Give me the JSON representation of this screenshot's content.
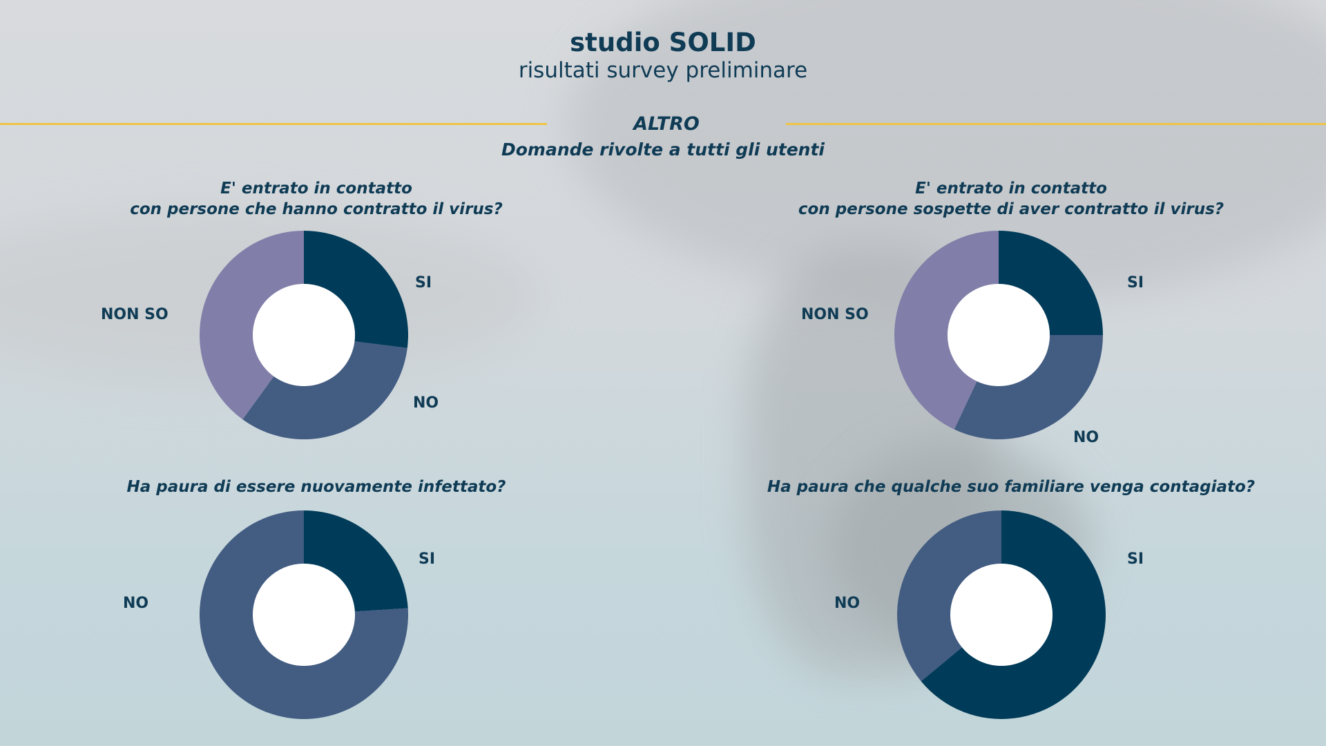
{
  "header": {
    "title": "studio SOLID",
    "subtitle": "risultati survey preliminare"
  },
  "section": {
    "title": "ALTRO",
    "subtitle": "Domande rivolte a tutti gli utenti"
  },
  "colors": {
    "si": "#003b59",
    "no": "#435c82",
    "non_so": "#817fa9",
    "accent": "#efc445",
    "text": "#0f3b55"
  },
  "questions": [
    {
      "line1": "E' entrato in contatto",
      "line2": "con persone che hanno contratto il virus?"
    },
    {
      "line1": "E' entrato in contatto",
      "line2": "con persone sospette di aver contratto il virus?"
    },
    {
      "line1": "Ha paura di essere nuovamente infettato?",
      "line2": ""
    },
    {
      "line1": "Ha paura che qualche suo familiare venga contagiato?",
      "line2": ""
    }
  ],
  "chart_data": [
    {
      "type": "pie",
      "title": "E' entrato in contatto con persone che hanno contratto il virus?",
      "categories": [
        "SI",
        "NO",
        "NON SO"
      ],
      "values": [
        27,
        33,
        40
      ],
      "colors": [
        "#003b59",
        "#435c82",
        "#817fa9"
      ],
      "hole": "donut"
    },
    {
      "type": "pie",
      "title": "E' entrato in contatto con persone sospette di aver contratto il virus?",
      "categories": [
        "SI",
        "NO",
        "NON SO"
      ],
      "values": [
        25,
        32,
        43
      ],
      "colors": [
        "#003b59",
        "#435c82",
        "#817fa9"
      ],
      "hole": "donut"
    },
    {
      "type": "pie",
      "title": "Ha paura di essere nuovamente infettato?",
      "categories": [
        "SI",
        "NO"
      ],
      "values": [
        24,
        76
      ],
      "colors": [
        "#003b59",
        "#435c82"
      ],
      "hole": "donut"
    },
    {
      "type": "pie",
      "title": "Ha paura che qualche suo familiare venga contagiato?",
      "categories": [
        "SI",
        "NO"
      ],
      "values": [
        64,
        36
      ],
      "colors": [
        "#003b59",
        "#435c82"
      ],
      "hole": "donut"
    }
  ]
}
